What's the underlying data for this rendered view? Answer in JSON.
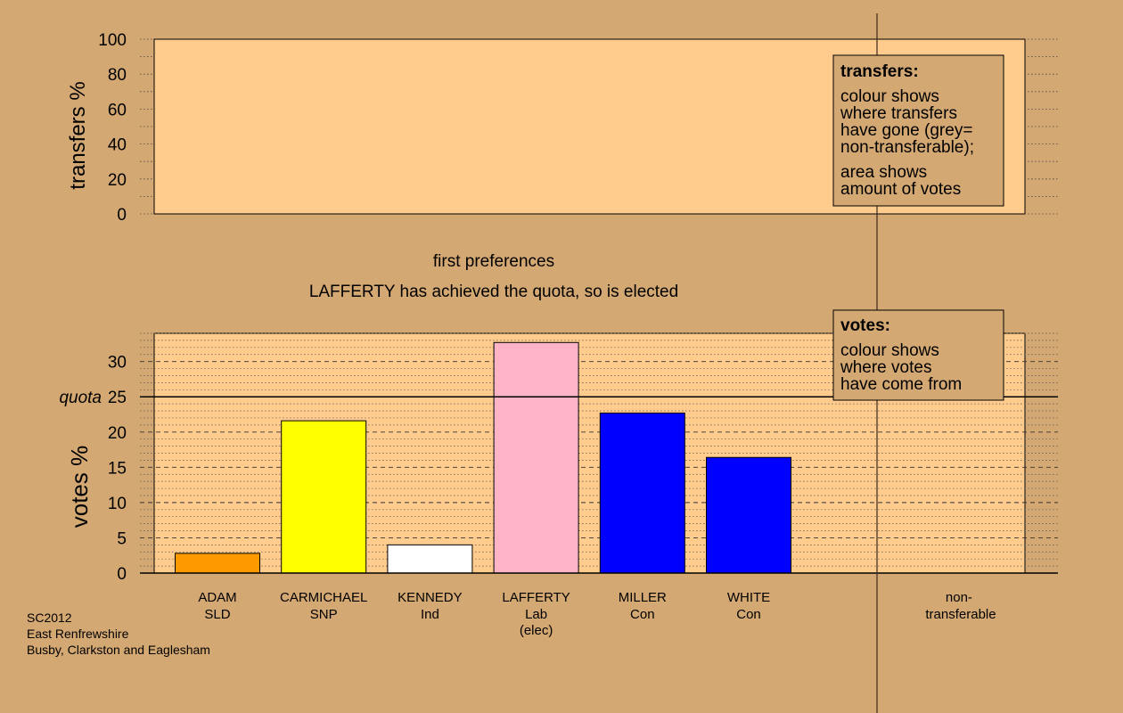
{
  "colors": {
    "background": "#D4A873",
    "plot_fill": "#FFCC8E",
    "legend_fill": "#D4A873",
    "quota_line": "#000000",
    "SLD": "#FF9900",
    "SNP": "#FFFF00",
    "Ind": "#FFFFFF",
    "Lab": "#FFB3C6",
    "Con": "#0000FF"
  },
  "chart_data": [
    {
      "type": "bar",
      "panel": "transfers",
      "ylabel": "transfers %",
      "ylim": [
        0,
        100
      ],
      "yticks": [
        0,
        20,
        40,
        60,
        80,
        100
      ],
      "grid": "dotted",
      "values": []
    },
    {
      "type": "bar",
      "panel": "votes",
      "ylabel": "votes %",
      "ylim": [
        0,
        34
      ],
      "yticks": [
        0,
        5,
        10,
        15,
        20,
        25,
        30
      ],
      "quota": 25,
      "quota_label": "quota",
      "grid": "dashed",
      "categories": [
        "ADAM",
        "CARMICHAEL",
        "KENNEDY",
        "LAFFERTY",
        "MILLER",
        "WHITE"
      ],
      "category_subtitles": [
        "SLD",
        "SNP",
        "Ind",
        "Lab",
        "Con",
        "Con"
      ],
      "category_notes": [
        "",
        "",
        "",
        "(elec)",
        "",
        ""
      ],
      "series": [
        {
          "values": [
            2.8,
            21.6,
            4.0,
            32.7,
            22.7,
            16.4
          ],
          "colors": [
            "#FF9900",
            "#FFFF00",
            "#FFFFFF",
            "#FFB3C6",
            "#0000FF",
            "#0000FF"
          ]
        }
      ],
      "extra_column_label": [
        "non-",
        "transferable"
      ]
    }
  ],
  "stage_title": "first preferences",
  "stage_message": "LAFFERTY has achieved the quota, so is elected",
  "legend_transfers": {
    "title": "transfers:",
    "para1": [
      "colour shows",
      "where transfers",
      "have gone (grey=",
      "non-transferable);"
    ],
    "para2": [
      "area shows",
      "amount of votes"
    ]
  },
  "legend_votes": {
    "title": "votes:",
    "para1": [
      "colour shows",
      "where votes",
      "have come from"
    ]
  },
  "footer": [
    "SC2012",
    "East Renfrewshire",
    "Busby, Clarkston and Eaglesham"
  ]
}
